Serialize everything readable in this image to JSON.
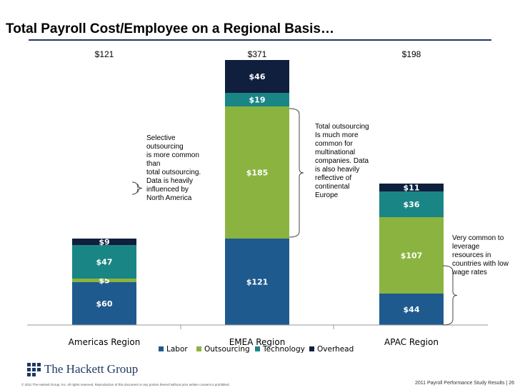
{
  "title": "Total Payroll Cost/Employee on a Regional Basis…",
  "notes": {
    "americas": "Selective\noutsourcing\nis more common\nthan\ntotal outsourcing.\nData is heavily\ninfluenced by\nNorth America",
    "emea": "Total outsourcing\nIs much more\ncommon for\nmultinational\ncompanies. Data\nis also heavily\nreflective of\ncontinental\nEurope",
    "apac": "Very common to\nleverage\nresources in\ncountries with low\nwage rates"
  },
  "footer": {
    "logo_text": "The Hackett Group",
    "copyright": "© 2011 The Hackett Group, Inc. All rights reserved. Reproduction of this document or any portion thereof without prior written consent is prohibited.",
    "page_ref": "2011 Payroll Performance Study Results | 26"
  },
  "chart_data": {
    "type": "bar",
    "stacked": true,
    "categories": [
      "Americas Region",
      "EMEA Region",
      "APAC Region"
    ],
    "series": [
      {
        "name": "Labor",
        "values": [
          60,
          121,
          44
        ],
        "labels": [
          "$60",
          "$121",
          "$44"
        ],
        "color": "#1f5a8e"
      },
      {
        "name": "Outsourcing",
        "values": [
          5,
          185,
          107
        ],
        "labels": [
          "$5",
          "$185",
          "$107"
        ],
        "color": "#8ab43f"
      },
      {
        "name": "Technology",
        "values": [
          47,
          19,
          36
        ],
        "labels": [
          "$47",
          "$19",
          "$36"
        ],
        "color": "#1a8585"
      },
      {
        "name": "Overhead",
        "values": [
          9,
          46,
          11
        ],
        "labels": [
          "$9",
          "$46",
          "$11"
        ],
        "color": "#0f1f3d"
      }
    ],
    "totals": [
      "$121",
      "$371",
      "$198"
    ],
    "legend_position": "bottom",
    "grid": false
  }
}
